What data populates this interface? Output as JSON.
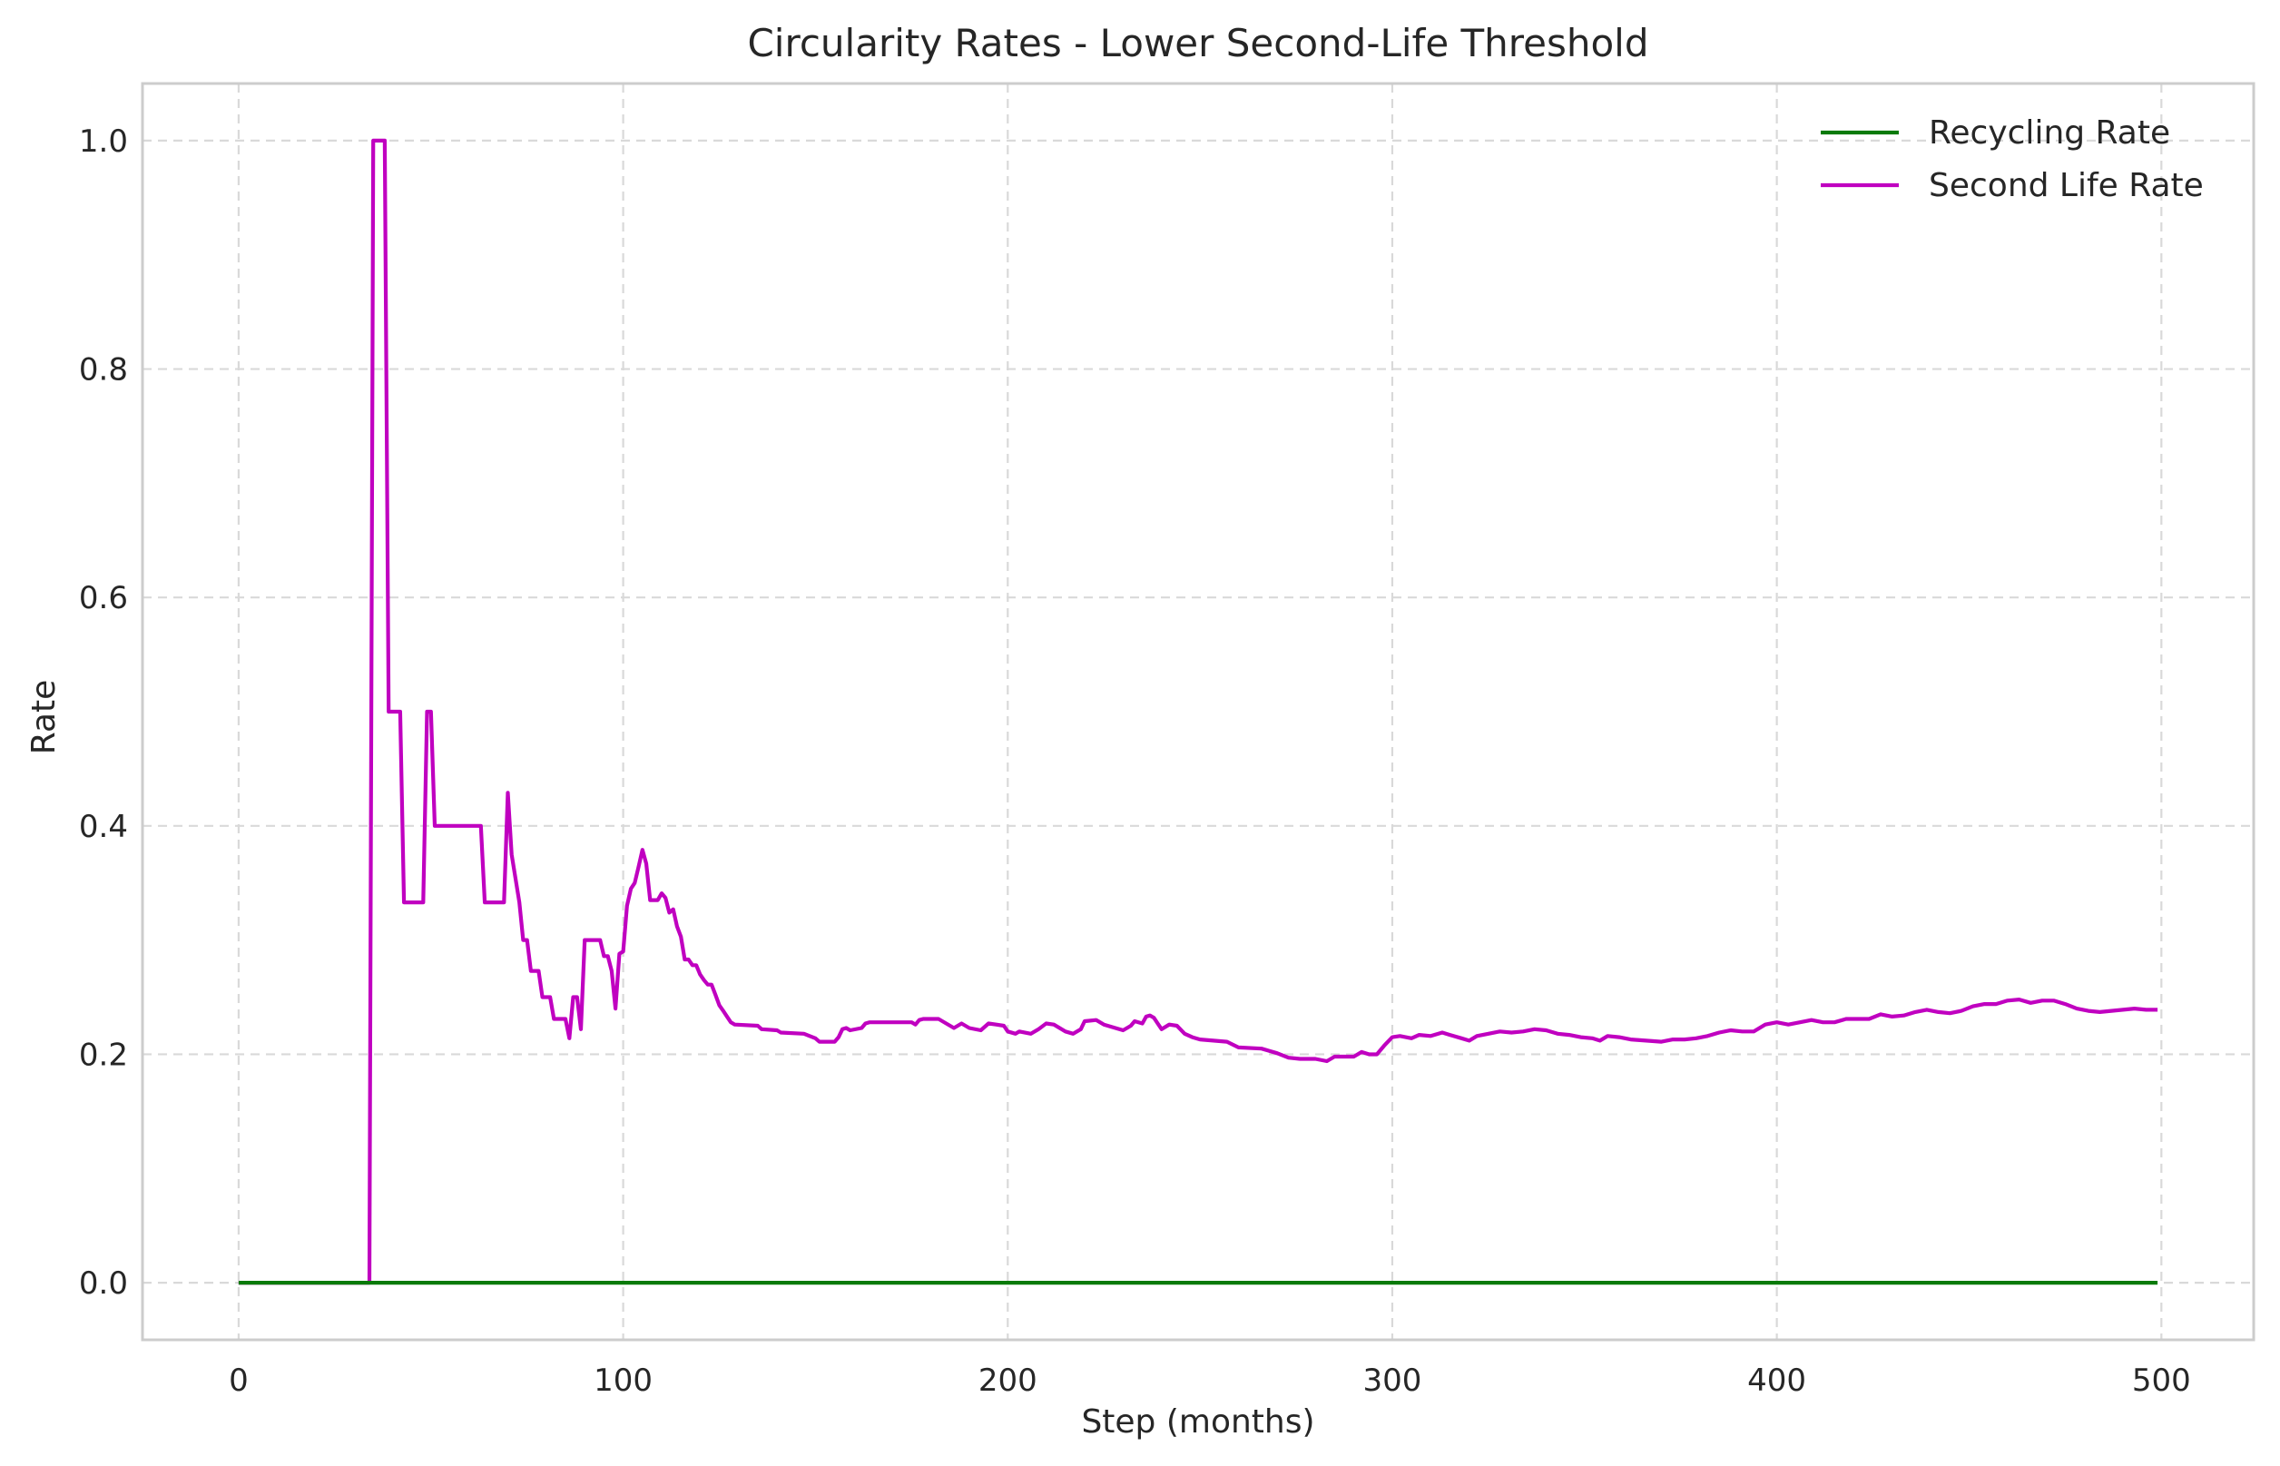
{
  "chart_data": {
    "type": "line",
    "title": "Circularity Rates - Lower Second-Life Threshold",
    "xlabel": "Step (months)",
    "ylabel": "Rate",
    "xlim": [
      -25,
      524
    ],
    "ylim": [
      -0.05,
      1.05
    ],
    "xticks": [
      0,
      100,
      200,
      300,
      400,
      500
    ],
    "yticks": [
      0.0,
      0.2,
      0.4,
      0.6,
      0.8,
      1.0
    ],
    "xtick_labels": [
      "0",
      "100",
      "200",
      "300",
      "400",
      "500"
    ],
    "ytick_labels": [
      "0.0",
      "0.2",
      "0.4",
      "0.6",
      "0.8",
      "1.0"
    ],
    "grid": true,
    "legend_position": "top-right",
    "series": [
      {
        "name": "Recycling Rate",
        "color": "#0a7a0a",
        "points": [
          [
            0,
            0.0
          ],
          [
            499,
            0.0
          ]
        ]
      },
      {
        "name": "Second Life Rate",
        "color": "#c000c0",
        "points": [
          [
            0,
            0.0
          ],
          [
            34,
            0.0
          ],
          [
            35,
            1.0
          ],
          [
            38,
            1.0
          ],
          [
            39,
            0.5
          ],
          [
            42,
            0.5
          ],
          [
            43,
            0.333
          ],
          [
            48,
            0.333
          ],
          [
            49,
            0.5
          ],
          [
            50,
            0.5
          ],
          [
            51,
            0.4
          ],
          [
            63,
            0.4
          ],
          [
            64,
            0.333
          ],
          [
            69,
            0.333
          ],
          [
            70,
            0.429
          ],
          [
            71,
            0.375
          ],
          [
            73,
            0.333
          ],
          [
            74,
            0.3
          ],
          [
            75,
            0.3
          ],
          [
            76,
            0.273
          ],
          [
            78,
            0.273
          ],
          [
            79,
            0.25
          ],
          [
            81,
            0.25
          ],
          [
            82,
            0.231
          ],
          [
            85,
            0.231
          ],
          [
            86,
            0.214
          ],
          [
            87,
            0.25
          ],
          [
            88,
            0.25
          ],
          [
            89,
            0.222
          ],
          [
            90,
            0.3
          ],
          [
            94,
            0.3
          ],
          [
            95,
            0.286
          ],
          [
            96,
            0.286
          ],
          [
            97,
            0.273
          ],
          [
            98,
            0.24
          ],
          [
            99,
            0.288
          ],
          [
            100,
            0.29
          ],
          [
            101,
            0.33
          ],
          [
            102,
            0.345
          ],
          [
            103,
            0.35
          ],
          [
            104,
            0.364
          ],
          [
            105,
            0.379
          ],
          [
            106,
            0.367
          ],
          [
            107,
            0.335
          ],
          [
            109,
            0.335
          ],
          [
            110,
            0.341
          ],
          [
            111,
            0.337
          ],
          [
            112,
            0.324
          ],
          [
            113,
            0.327
          ],
          [
            114,
            0.312
          ],
          [
            115,
            0.303
          ],
          [
            116,
            0.283
          ],
          [
            117,
            0.283
          ],
          [
            118,
            0.278
          ],
          [
            119,
            0.278
          ],
          [
            120,
            0.27
          ],
          [
            121,
            0.265
          ],
          [
            122,
            0.261
          ],
          [
            123,
            0.261
          ],
          [
            124,
            0.252
          ],
          [
            125,
            0.243
          ],
          [
            126,
            0.238
          ],
          [
            127,
            0.233
          ],
          [
            128,
            0.228
          ],
          [
            129,
            0.226
          ],
          [
            135,
            0.225
          ],
          [
            136,
            0.222
          ],
          [
            140,
            0.221
          ],
          [
            141,
            0.219
          ],
          [
            147,
            0.218
          ],
          [
            150,
            0.214
          ],
          [
            151,
            0.211
          ],
          [
            155,
            0.211
          ],
          [
            156,
            0.215
          ],
          [
            157,
            0.222
          ],
          [
            158,
            0.223
          ],
          [
            159,
            0.221
          ],
          [
            162,
            0.223
          ],
          [
            163,
            0.227
          ],
          [
            164,
            0.228
          ],
          [
            170,
            0.228
          ],
          [
            175,
            0.228
          ],
          [
            176,
            0.226
          ],
          [
            177,
            0.23
          ],
          [
            178,
            0.231
          ],
          [
            182,
            0.231
          ],
          [
            184,
            0.227
          ],
          [
            186,
            0.223
          ],
          [
            188,
            0.227
          ],
          [
            190,
            0.223
          ],
          [
            193,
            0.221
          ],
          [
            195,
            0.227
          ],
          [
            197,
            0.226
          ],
          [
            199,
            0.225
          ],
          [
            200,
            0.22
          ],
          [
            202,
            0.218
          ],
          [
            203,
            0.22
          ],
          [
            206,
            0.218
          ],
          [
            208,
            0.222
          ],
          [
            210,
            0.227
          ],
          [
            212,
            0.226
          ],
          [
            215,
            0.22
          ],
          [
            217,
            0.218
          ],
          [
            219,
            0.222
          ],
          [
            220,
            0.229
          ],
          [
            223,
            0.23
          ],
          [
            225,
            0.226
          ],
          [
            228,
            0.223
          ],
          [
            230,
            0.221
          ],
          [
            232,
            0.225
          ],
          [
            233,
            0.229
          ],
          [
            235,
            0.227
          ],
          [
            236,
            0.233
          ],
          [
            237,
            0.234
          ],
          [
            238,
            0.232
          ],
          [
            239,
            0.227
          ],
          [
            240,
            0.222
          ],
          [
            242,
            0.226
          ],
          [
            244,
            0.225
          ],
          [
            246,
            0.218
          ],
          [
            248,
            0.215
          ],
          [
            250,
            0.213
          ],
          [
            257,
            0.211
          ],
          [
            260,
            0.206
          ],
          [
            266,
            0.205
          ],
          [
            270,
            0.201
          ],
          [
            273,
            0.197
          ],
          [
            276,
            0.196
          ],
          [
            280,
            0.196
          ],
          [
            283,
            0.194
          ],
          [
            285,
            0.198
          ],
          [
            290,
            0.198
          ],
          [
            292,
            0.202
          ],
          [
            294,
            0.2
          ],
          [
            296,
            0.2
          ],
          [
            298,
            0.208
          ],
          [
            300,
            0.215
          ],
          [
            302,
            0.216
          ],
          [
            305,
            0.214
          ],
          [
            307,
            0.217
          ],
          [
            310,
            0.216
          ],
          [
            313,
            0.219
          ],
          [
            315,
            0.217
          ],
          [
            318,
            0.214
          ],
          [
            320,
            0.212
          ],
          [
            322,
            0.216
          ],
          [
            325,
            0.218
          ],
          [
            328,
            0.22
          ],
          [
            331,
            0.219
          ],
          [
            334,
            0.22
          ],
          [
            337,
            0.222
          ],
          [
            340,
            0.221
          ],
          [
            343,
            0.218
          ],
          [
            346,
            0.217
          ],
          [
            349,
            0.215
          ],
          [
            352,
            0.214
          ],
          [
            354,
            0.212
          ],
          [
            356,
            0.216
          ],
          [
            359,
            0.215
          ],
          [
            362,
            0.213
          ],
          [
            366,
            0.212
          ],
          [
            370,
            0.211
          ],
          [
            373,
            0.213
          ],
          [
            376,
            0.213
          ],
          [
            379,
            0.214
          ],
          [
            382,
            0.216
          ],
          [
            385,
            0.219
          ],
          [
            388,
            0.221
          ],
          [
            391,
            0.22
          ],
          [
            394,
            0.22
          ],
          [
            397,
            0.226
          ],
          [
            400,
            0.228
          ],
          [
            403,
            0.226
          ],
          [
            406,
            0.228
          ],
          [
            409,
            0.23
          ],
          [
            412,
            0.228
          ],
          [
            415,
            0.228
          ],
          [
            418,
            0.231
          ],
          [
            421,
            0.231
          ],
          [
            424,
            0.231
          ],
          [
            427,
            0.235
          ],
          [
            430,
            0.233
          ],
          [
            433,
            0.234
          ],
          [
            436,
            0.237
          ],
          [
            439,
            0.239
          ],
          [
            442,
            0.237
          ],
          [
            445,
            0.236
          ],
          [
            448,
            0.238
          ],
          [
            451,
            0.242
          ],
          [
            454,
            0.244
          ],
          [
            457,
            0.244
          ],
          [
            460,
            0.247
          ],
          [
            463,
            0.248
          ],
          [
            466,
            0.245
          ],
          [
            469,
            0.247
          ],
          [
            472,
            0.247
          ],
          [
            475,
            0.244
          ],
          [
            478,
            0.24
          ],
          [
            481,
            0.238
          ],
          [
            484,
            0.237
          ],
          [
            487,
            0.238
          ],
          [
            490,
            0.239
          ],
          [
            493,
            0.24
          ],
          [
            496,
            0.239
          ],
          [
            499,
            0.239
          ]
        ]
      }
    ]
  }
}
